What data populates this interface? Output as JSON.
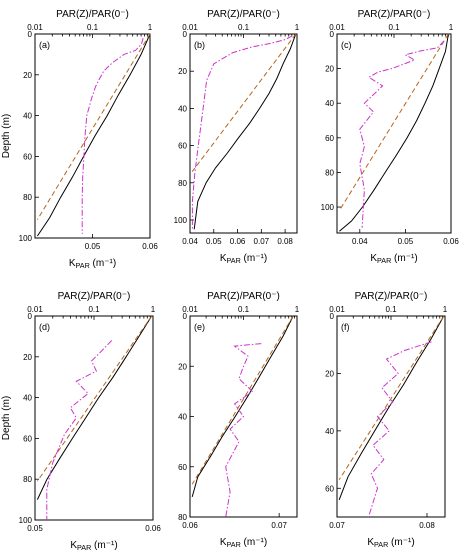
{
  "figure": {
    "top_axis_title": "PAR(Z)/PAR(0⁻)",
    "y_axis_title": "Depth (m)",
    "x_axis_title_main": "K",
    "x_axis_title_sub": "PAR",
    "x_axis_title_unit": " (m⁻¹)"
  },
  "chart_data": [
    {
      "type": "line",
      "panel": "(a)",
      "top_axis": {
        "scale": "log",
        "range": [
          0.01,
          1
        ],
        "ticks": [
          "0.01",
          "0.1",
          "1"
        ]
      },
      "bottom_axis": {
        "range": [
          0.04,
          0.06
        ],
        "ticks": [
          0.05,
          0.06
        ],
        "tick_labels": [
          "0.05",
          "0.06"
        ]
      },
      "y_axis": {
        "range": [
          0,
          100
        ],
        "ticks": [
          0,
          20,
          40,
          60,
          80,
          100
        ],
        "tick_labels": [
          "0",
          "20",
          "40",
          "60",
          "80",
          "100"
        ]
      },
      "series": [
        {
          "role": "PAR(Z)/PAR(0⁻)",
          "color": "#000000",
          "dash": "solid",
          "x": [
            1,
            0.7,
            0.45,
            0.28,
            0.18,
            0.11,
            0.07,
            0.045,
            0.028,
            0.018,
            0.011
          ],
          "y": [
            0,
            10,
            20,
            30,
            40,
            50,
            60,
            70,
            80,
            90,
            99
          ]
        },
        {
          "role": "fitted exponential",
          "color": "#b5651d",
          "dash": "dashed",
          "x": [
            1,
            0.011
          ],
          "y": [
            0,
            91
          ]
        },
        {
          "role": "K_PAR",
          "color": "#cc33cc",
          "dash": "dashdot",
          "x": [
            0.0588,
            0.0585,
            0.0575,
            0.0555,
            0.0545,
            0.0535,
            0.052,
            0.0512,
            0.0505,
            0.0498,
            0.049,
            0.0487,
            0.0485,
            0.0483,
            0.0482,
            0.0482,
            0.0482
          ],
          "y": [
            2,
            5,
            8,
            10,
            12,
            14,
            18,
            22,
            26,
            32,
            40,
            50,
            60,
            70,
            80,
            90,
            98
          ]
        }
      ]
    },
    {
      "type": "line",
      "panel": "(b)",
      "top_axis": {
        "scale": "log",
        "range": [
          0.01,
          1
        ],
        "ticks": [
          "0.01",
          "0.1",
          "1"
        ]
      },
      "bottom_axis": {
        "range": [
          0.04,
          0.085
        ],
        "ticks": [
          0.04,
          0.05,
          0.06,
          0.07,
          0.08
        ],
        "tick_labels": [
          "0.04",
          "0.05",
          "0.06",
          "0.07",
          "0.08"
        ]
      },
      "y_axis": {
        "range": [
          0,
          107
        ],
        "ticks": [
          0,
          20,
          40,
          60,
          80,
          100
        ],
        "tick_labels": [
          "0",
          "20",
          "40",
          "60",
          "80",
          "100"
        ]
      },
      "series": [
        {
          "role": "PAR(Z)/PAR(0⁻)",
          "color": "#000000",
          "dash": "solid",
          "x": [
            0.95,
            0.75,
            0.55,
            0.42,
            0.3,
            0.2,
            0.13,
            0.08,
            0.05,
            0.03,
            0.02,
            0.014,
            0.012
          ],
          "y": [
            0,
            8,
            16,
            24,
            32,
            40,
            48,
            56,
            64,
            72,
            80,
            90,
            105
          ]
        },
        {
          "role": "fitted exponential",
          "color": "#b5651d",
          "dash": "dashed",
          "x": [
            0.95,
            0.011
          ],
          "y": [
            0,
            74
          ]
        },
        {
          "role": "K_PAR",
          "color": "#cc33cc",
          "dash": "dashdot",
          "x": [
            0.083,
            0.08,
            0.074,
            0.066,
            0.058,
            0.05,
            0.047,
            0.046,
            0.045,
            0.044,
            0.043,
            0.042,
            0.041,
            0.041
          ],
          "y": [
            1,
            3,
            5,
            7,
            10,
            16,
            25,
            35,
            45,
            55,
            65,
            75,
            90,
            105
          ]
        }
      ]
    },
    {
      "type": "line",
      "panel": "(c)",
      "top_axis": {
        "scale": "log",
        "range": [
          0.01,
          1
        ],
        "ticks": [
          "0.01",
          "0.1",
          "1"
        ]
      },
      "bottom_axis": {
        "range": [
          0.035,
          0.06
        ],
        "ticks": [
          0.04,
          0.05,
          0.06
        ],
        "tick_labels": [
          "0.04",
          "0.05",
          "0.06"
        ]
      },
      "y_axis": {
        "range": [
          0,
          115
        ],
        "ticks": [
          0,
          20,
          40,
          60,
          80,
          100
        ],
        "tick_labels": [
          "0",
          "20",
          "40",
          "60",
          "80",
          "100"
        ]
      },
      "series": [
        {
          "role": "PAR(Z)/PAR(0⁻)",
          "color": "#000000",
          "dash": "solid",
          "x": [
            0.9,
            0.8,
            0.62,
            0.48,
            0.35,
            0.25,
            0.17,
            0.11,
            0.07,
            0.045,
            0.028,
            0.018,
            0.011
          ],
          "y": [
            0,
            10,
            20,
            30,
            40,
            50,
            60,
            70,
            80,
            90,
            100,
            108,
            114
          ]
        },
        {
          "role": "fitted exponential",
          "color": "#b5651d",
          "dash": "dashed",
          "x": [
            0.9,
            0.011
          ],
          "y": [
            0,
            102
          ]
        },
        {
          "role": "K_PAR",
          "color": "#cc33cc",
          "dash": "dashdot",
          "x": [
            0.0585,
            0.057,
            0.053,
            0.05,
            0.052,
            0.047,
            0.044,
            0.042,
            0.045,
            0.041,
            0.043,
            0.04,
            0.041,
            0.04,
            0.041,
            0.0405
          ],
          "y": [
            4,
            8,
            10,
            12,
            15,
            20,
            22,
            25,
            30,
            40,
            45,
            55,
            65,
            75,
            90,
            112
          ]
        }
      ]
    },
    {
      "type": "line",
      "panel": "(d)",
      "top_axis": {
        "scale": "log",
        "range": [
          0.01,
          1
        ],
        "ticks": [
          "0.01",
          "0.1",
          "1"
        ]
      },
      "bottom_axis": {
        "range": [
          0.05,
          0.06
        ],
        "ticks": [
          0.05,
          0.06
        ],
        "tick_labels": [
          "0.05",
          "0.06"
        ]
      },
      "y_axis": {
        "range": [
          0,
          100
        ],
        "ticks": [
          0,
          20,
          40,
          60,
          80,
          100
        ],
        "tick_labels": [
          "0",
          "20",
          "40",
          "60",
          "80",
          "100"
        ]
      },
      "series": [
        {
          "role": "PAR(Z)/PAR(0⁻)",
          "color": "#000000",
          "dash": "solid",
          "x": [
            0.95,
            0.58,
            0.35,
            0.21,
            0.12,
            0.072,
            0.043,
            0.026,
            0.016,
            0.011
          ],
          "y": [
            0,
            10,
            20,
            30,
            40,
            50,
            60,
            70,
            80,
            90
          ]
        },
        {
          "role": "fitted exponential",
          "color": "#b5651d",
          "dash": "dashed",
          "x": [
            0.95,
            0.011
          ],
          "y": [
            0,
            81
          ]
        },
        {
          "role": "K_PAR",
          "color": "#cc33cc",
          "dash": "dashdot",
          "x": [
            0.0565,
            0.0555,
            0.0548,
            0.0552,
            0.0535,
            0.0545,
            0.053,
            0.0535,
            0.0525,
            0.052,
            0.0515,
            0.051,
            0.051
          ],
          "y": [
            12,
            18,
            22,
            27,
            32,
            38,
            45,
            50,
            58,
            65,
            72,
            85,
            100
          ]
        }
      ]
    },
    {
      "type": "line",
      "panel": "(e)",
      "top_axis": {
        "scale": "log",
        "range": [
          0.01,
          1
        ],
        "ticks": [
          "0.01",
          "0.1",
          "1"
        ]
      },
      "bottom_axis": {
        "range": [
          0.06,
          0.072
        ],
        "ticks": [
          0.06,
          0.07
        ],
        "tick_labels": [
          "0.06",
          "0.07"
        ]
      },
      "y_axis": {
        "range": [
          0,
          80
        ],
        "ticks": [
          0,
          20,
          40,
          60,
          80
        ],
        "tick_labels": [
          "0",
          "20",
          "40",
          "60",
          "80"
        ]
      },
      "series": [
        {
          "role": "PAR(Z)/PAR(0⁻)",
          "color": "#000000",
          "dash": "solid",
          "x": [
            0.85,
            0.55,
            0.33,
            0.2,
            0.12,
            0.07,
            0.04,
            0.024,
            0.014,
            0.011
          ],
          "y": [
            0,
            8,
            16,
            24,
            32,
            40,
            48,
            56,
            64,
            72
          ]
        },
        {
          "role": "fitted exponential",
          "color": "#b5651d",
          "dash": "dashed",
          "x": [
            0.85,
            0.011
          ],
          "y": [
            0,
            67
          ]
        },
        {
          "role": "K_PAR",
          "color": "#cc33cc",
          "dash": "dashdot",
          "x": [
            0.068,
            0.065,
            0.0665,
            0.066,
            0.0655,
            0.067,
            0.065,
            0.066,
            0.0645,
            0.0655,
            0.064,
            0.0645,
            0.064
          ],
          "y": [
            11,
            12,
            16,
            20,
            25,
            30,
            35,
            40,
            45,
            50,
            60,
            70,
            80
          ]
        }
      ]
    },
    {
      "type": "line",
      "panel": "(f)",
      "top_axis": {
        "scale": "log",
        "range": [
          0.01,
          1
        ],
        "ticks": [
          "0.01",
          "0.1",
          "1"
        ]
      },
      "bottom_axis": {
        "range": [
          0.07,
          0.082
        ],
        "ticks": [
          0.07,
          0.08
        ],
        "tick_labels": [
          "0.07",
          "0.08"
        ]
      },
      "y_axis": {
        "range": [
          0,
          70
        ],
        "ticks": [
          0,
          20,
          40,
          60
        ],
        "tick_labels": [
          "0",
          "20",
          "40",
          "60"
        ]
      },
      "series": [
        {
          "role": "PAR(Z)/PAR(0⁻)",
          "color": "#000000",
          "dash": "solid",
          "x": [
            0.95,
            0.55,
            0.3,
            0.17,
            0.09,
            0.05,
            0.028,
            0.016,
            0.011
          ],
          "y": [
            0,
            8,
            16,
            24,
            32,
            40,
            48,
            56,
            64
          ]
        },
        {
          "role": "fitted exponential",
          "color": "#b5651d",
          "dash": "dashed",
          "x": [
            0.95,
            0.011
          ],
          "y": [
            0,
            57
          ]
        },
        {
          "role": "K_PAR",
          "color": "#cc33cc",
          "dash": "dashdot",
          "x": [
            0.0805,
            0.0775,
            0.0755,
            0.0768,
            0.075,
            0.0762,
            0.0745,
            0.0758,
            0.074,
            0.0752,
            0.0738,
            0.0745,
            0.0735
          ],
          "y": [
            9,
            12,
            15,
            20,
            25,
            30,
            35,
            40,
            45,
            50,
            55,
            60,
            70
          ]
        }
      ]
    }
  ]
}
